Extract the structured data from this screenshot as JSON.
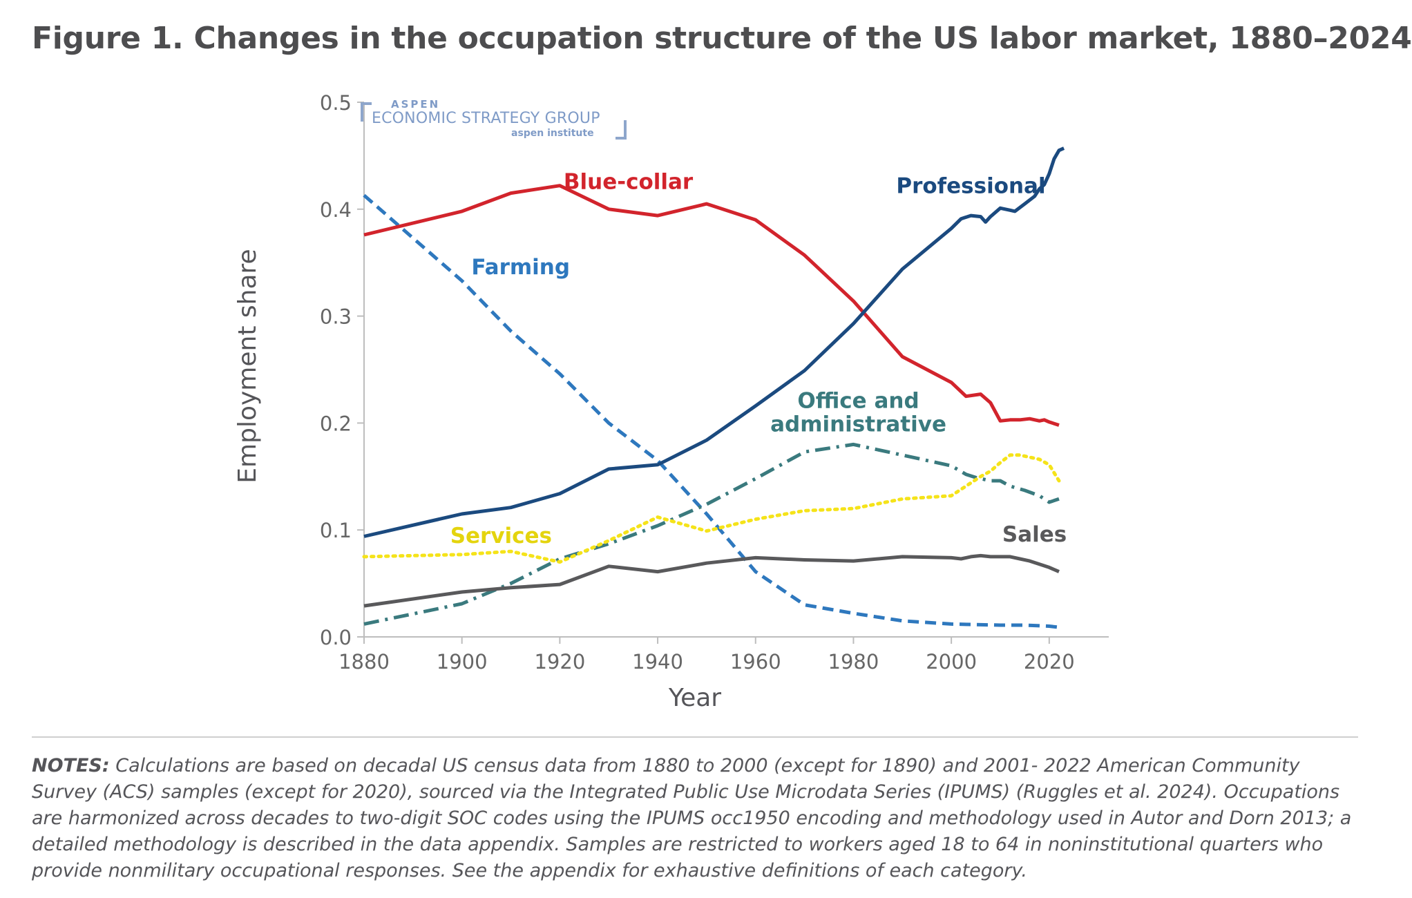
{
  "title": "Figure 1. Changes in the occupation structure of the US labor market, 1880–2024",
  "logo": {
    "line1": "ASPEN",
    "line2": "ECONOMIC STRATEGY GROUP",
    "line3": "aspen institute"
  },
  "notes": {
    "label": "NOTES:",
    "text": " Calculations are based on decadal US census data from 1880 to 2000 (except for 1890) and 2001- 2022 American Community Survey (ACS) samples (except for 2020), sourced via the Integrated Public Use Microdata Series (IPUMS) (Ruggles et al. 2024). Occupations are harmonized across decades to two-digit SOC codes using the IPUMS occ1950 encoding and methodology used in Autor and Dorn 2013; a detailed methodology is described in the data appendix. Samples are restricted to workers aged 18 to 64 in noninstitutional quarters who provide nonmilitary occupational responses. See the appendix for exhaustive definitions of each category."
  },
  "chart_data": {
    "type": "line",
    "title": "Figure 1. Changes in the occupation structure of the US labor market, 1880–2024",
    "xlabel": "Year",
    "ylabel": "Employment share",
    "xlim": [
      1880,
      2026
    ],
    "ylim": [
      0,
      0.5
    ],
    "xticks": [
      1880,
      1900,
      1920,
      1940,
      1960,
      1980,
      2000,
      2020
    ],
    "xtick_labels": [
      "1880",
      "1900",
      "1920",
      "1940",
      "1960",
      "1980",
      "2000",
      "2020"
    ],
    "yticks": [
      0,
      0.1,
      0.2,
      0.3,
      0.4,
      0.5
    ],
    "ytick_labels": [
      "0.0",
      "0.1",
      "0.2",
      "0.3",
      "0.4",
      "0.5"
    ],
    "grid": false,
    "series": [
      {
        "name": "Blue-collar",
        "color": "#d2242c",
        "dash": "solid",
        "label_x": 1934,
        "label_y": 0.419,
        "points": [
          [
            1880,
            0.376
          ],
          [
            1900,
            0.398
          ],
          [
            1910,
            0.415
          ],
          [
            1920,
            0.422
          ],
          [
            1930,
            0.4
          ],
          [
            1940,
            0.394
          ],
          [
            1950,
            0.405
          ],
          [
            1960,
            0.39
          ],
          [
            1970,
            0.357
          ],
          [
            1980,
            0.314
          ],
          [
            1990,
            0.262
          ],
          [
            2000,
            0.238
          ],
          [
            2003,
            0.225
          ],
          [
            2006,
            0.227
          ],
          [
            2008,
            0.219
          ],
          [
            2010,
            0.202
          ],
          [
            2012,
            0.203
          ],
          [
            2014,
            0.203
          ],
          [
            2016,
            0.204
          ],
          [
            2018,
            0.202
          ],
          [
            2019,
            0.203
          ],
          [
            2020,
            0.201
          ],
          [
            2022,
            0.198
          ]
        ]
      },
      {
        "name": "Professional",
        "color": "#1b4a7f",
        "dash": "solid",
        "label_x": 2004,
        "label_y": 0.415,
        "points": [
          [
            1880,
            0.094
          ],
          [
            1900,
            0.115
          ],
          [
            1910,
            0.121
          ],
          [
            1920,
            0.134
          ],
          [
            1930,
            0.157
          ],
          [
            1940,
            0.161
          ],
          [
            1950,
            0.184
          ],
          [
            1960,
            0.216
          ],
          [
            1970,
            0.249
          ],
          [
            1980,
            0.293
          ],
          [
            1990,
            0.344
          ],
          [
            2000,
            0.382
          ],
          [
            2002,
            0.391
          ],
          [
            2004,
            0.394
          ],
          [
            2006,
            0.393
          ],
          [
            2007,
            0.388
          ],
          [
            2008,
            0.393
          ],
          [
            2010,
            0.401
          ],
          [
            2012,
            0.399
          ],
          [
            2013,
            0.398
          ],
          [
            2015,
            0.405
          ],
          [
            2017,
            0.412
          ],
          [
            2018,
            0.419
          ],
          [
            2019,
            0.423
          ],
          [
            2020,
            0.433
          ],
          [
            2021,
            0.447
          ],
          [
            2022,
            0.455
          ],
          [
            2023,
            0.457
          ]
        ]
      },
      {
        "name": "Farming",
        "color": "#2e78be",
        "dash": "dashed",
        "label_x": 1912,
        "label_y": 0.339,
        "points": [
          [
            1880,
            0.413
          ],
          [
            1900,
            0.333
          ],
          [
            1910,
            0.286
          ],
          [
            1920,
            0.246
          ],
          [
            1930,
            0.2
          ],
          [
            1940,
            0.165
          ],
          [
            1950,
            0.115
          ],
          [
            1960,
            0.061
          ],
          [
            1970,
            0.03
          ],
          [
            1980,
            0.022
          ],
          [
            1990,
            0.015
          ],
          [
            2000,
            0.012
          ],
          [
            2010,
            0.011
          ],
          [
            2015,
            0.011
          ],
          [
            2020,
            0.01
          ],
          [
            2022,
            0.009
          ]
        ]
      },
      {
        "name": "Office and administrative",
        "label_lines": [
          "Office and",
          "administrative"
        ],
        "color": "#3a7a7e",
        "dash": "dashdot",
        "label_x": 1981,
        "label_y": 0.214,
        "points": [
          [
            1880,
            0.012
          ],
          [
            1900,
            0.031
          ],
          [
            1910,
            0.05
          ],
          [
            1920,
            0.073
          ],
          [
            1930,
            0.087
          ],
          [
            1940,
            0.104
          ],
          [
            1950,
            0.124
          ],
          [
            1960,
            0.148
          ],
          [
            1970,
            0.173
          ],
          [
            1980,
            0.18
          ],
          [
            1990,
            0.17
          ],
          [
            2000,
            0.16
          ],
          [
            2003,
            0.152
          ],
          [
            2005,
            0.149
          ],
          [
            2008,
            0.146
          ],
          [
            2010,
            0.146
          ],
          [
            2012,
            0.141
          ],
          [
            2015,
            0.137
          ],
          [
            2018,
            0.132
          ],
          [
            2020,
            0.126
          ],
          [
            2022,
            0.129
          ]
        ]
      },
      {
        "name": "Services",
        "color": "#f5e319",
        "dash": "dotted",
        "label_x": 1908,
        "label_y": 0.088,
        "points": [
          [
            1880,
            0.075
          ],
          [
            1900,
            0.077
          ],
          [
            1910,
            0.08
          ],
          [
            1920,
            0.07
          ],
          [
            1930,
            0.09
          ],
          [
            1940,
            0.112
          ],
          [
            1950,
            0.099
          ],
          [
            1960,
            0.11
          ],
          [
            1970,
            0.118
          ],
          [
            1980,
            0.12
          ],
          [
            1990,
            0.129
          ],
          [
            2000,
            0.132
          ],
          [
            2003,
            0.141
          ],
          [
            2006,
            0.15
          ],
          [
            2008,
            0.155
          ],
          [
            2010,
            0.163
          ],
          [
            2012,
            0.17
          ],
          [
            2014,
            0.17
          ],
          [
            2016,
            0.168
          ],
          [
            2018,
            0.166
          ],
          [
            2020,
            0.161
          ],
          [
            2022,
            0.146
          ]
        ]
      },
      {
        "name": "Sales",
        "color": "#59595b",
        "dash": "solid",
        "label_x": 2017,
        "label_y": 0.089,
        "points": [
          [
            1880,
            0.029
          ],
          [
            1900,
            0.042
          ],
          [
            1910,
            0.046
          ],
          [
            1920,
            0.049
          ],
          [
            1930,
            0.066
          ],
          [
            1940,
            0.061
          ],
          [
            1950,
            0.069
          ],
          [
            1960,
            0.074
          ],
          [
            1970,
            0.072
          ],
          [
            1980,
            0.071
          ],
          [
            1990,
            0.075
          ],
          [
            2000,
            0.074
          ],
          [
            2002,
            0.073
          ],
          [
            2004,
            0.075
          ],
          [
            2006,
            0.076
          ],
          [
            2008,
            0.075
          ],
          [
            2010,
            0.075
          ],
          [
            2012,
            0.075
          ],
          [
            2014,
            0.073
          ],
          [
            2016,
            0.071
          ],
          [
            2018,
            0.068
          ],
          [
            2020,
            0.065
          ],
          [
            2022,
            0.061
          ]
        ]
      }
    ]
  }
}
